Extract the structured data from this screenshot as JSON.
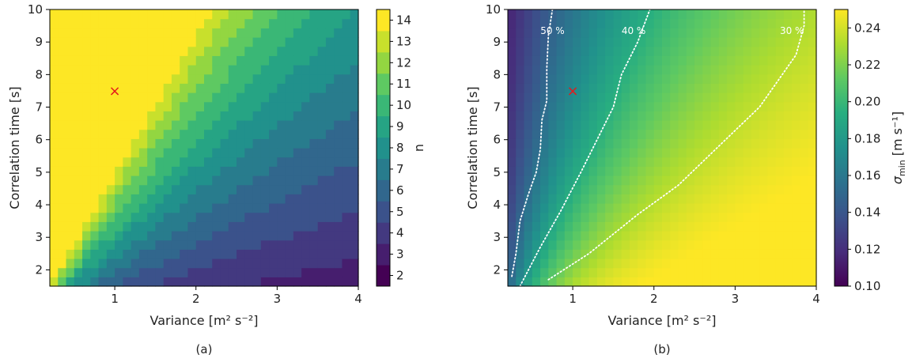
{
  "figure": {
    "panels": [
      "(a)",
      "(b)"
    ],
    "colormap": "viridis"
  },
  "chart_data": [
    {
      "type": "heatmap",
      "panel": "(a)",
      "xlabel": "Variance [m² s⁻²]",
      "ylabel": "Correlation time [s]",
      "xlim": [
        0.2,
        4.0
      ],
      "ylim": [
        1.5,
        10.0
      ],
      "xticks": [
        "1",
        "2",
        "3",
        "4"
      ],
      "yticks": [
        "2",
        "3",
        "4",
        "5",
        "6",
        "7",
        "8",
        "9",
        "10"
      ],
      "colorbar": {
        "label": "n",
        "ticks": [
          "2",
          "3",
          "4",
          "5",
          "6",
          "7",
          "8",
          "9",
          "10",
          "11",
          "12",
          "13",
          "14"
        ],
        "levels": [
          2,
          3,
          4,
          5,
          6,
          7,
          8,
          9,
          10,
          11,
          12,
          13,
          14
        ],
        "discrete": true
      },
      "grid": false,
      "marker": {
        "x": 1.0,
        "y": 7.5,
        "symbol": "×",
        "color": "#e41a1c"
      }
    },
    {
      "type": "heatmap",
      "panel": "(b)",
      "xlabel": "Variance [m² s⁻²]",
      "ylabel": "Correlation time [s]",
      "xlim": [
        0.2,
        4.0
      ],
      "ylim": [
        1.5,
        10.0
      ],
      "xticks": [
        "1",
        "2",
        "3",
        "4"
      ],
      "yticks": [
        "2",
        "3",
        "4",
        "5",
        "6",
        "7",
        "8",
        "9",
        "10"
      ],
      "colorbar": {
        "label_main": "σ",
        "label_sub": "min",
        "label_units": "[m s⁻¹]",
        "ticks": [
          "0.10",
          "0.12",
          "0.14",
          "0.16",
          "0.18",
          "0.20",
          "0.22",
          "0.24"
        ],
        "vmin": 0.1,
        "vmax": 0.25
      },
      "grid": false,
      "contours": [
        {
          "label": "50 %",
          "line": "dotted",
          "color": "#ffffff",
          "points": [
            [
              0.25,
              1.8
            ],
            [
              0.3,
              2.5
            ],
            [
              0.35,
              3.5
            ],
            [
              0.45,
              4.3
            ],
            [
              0.55,
              5.0
            ],
            [
              0.6,
              5.7
            ],
            [
              0.62,
              6.6
            ],
            [
              0.68,
              7.2
            ],
            [
              0.68,
              8.2
            ],
            [
              0.7,
              9.2
            ],
            [
              0.75,
              10.0
            ]
          ]
        },
        {
          "label": "40 %",
          "line": "dotted",
          "color": "#ffffff",
          "points": [
            [
              0.35,
              1.5
            ],
            [
              0.6,
              2.7
            ],
            [
              0.85,
              3.8
            ],
            [
              1.1,
              5.0
            ],
            [
              1.3,
              6.0
            ],
            [
              1.5,
              7.0
            ],
            [
              1.6,
              8.0
            ],
            [
              1.8,
              9.0
            ],
            [
              1.95,
              10.0
            ]
          ]
        },
        {
          "label": "30 %",
          "line": "dotted",
          "color": "#ffffff",
          "points": [
            [
              0.7,
              1.7
            ],
            [
              1.2,
              2.5
            ],
            [
              1.8,
              3.7
            ],
            [
              2.3,
              4.6
            ],
            [
              2.8,
              5.8
            ],
            [
              3.3,
              7.0
            ],
            [
              3.75,
              8.6
            ],
            [
              3.85,
              9.5
            ],
            [
              3.85,
              10.0
            ]
          ]
        }
      ],
      "marker": {
        "x": 1.0,
        "y": 7.5,
        "symbol": "×",
        "color": "#e41a1c"
      }
    }
  ]
}
